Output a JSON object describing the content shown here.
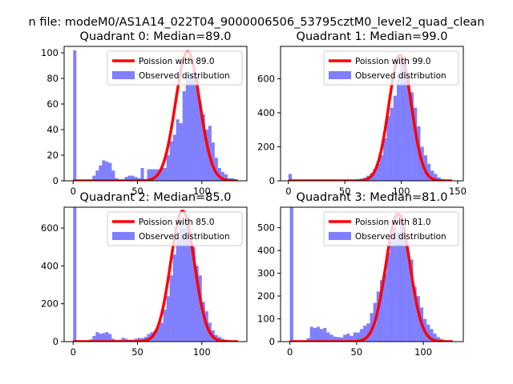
{
  "figure": {
    "suptitle": "n file: modeM0/AS1A14_022T04_9000006506_53795cztM0_level2_quad_clean"
  },
  "colors": {
    "bar": "#0000ff",
    "bar_opacity": 0.5,
    "line": "#ff0000",
    "axis": "#000000",
    "legend_edge": "#cccccc"
  },
  "chart_data": [
    {
      "type": "bar",
      "title": "Quadrant 0: Median=89.0",
      "xlabel": "",
      "ylabel": "",
      "xlim": [
        -7,
        135
      ],
      "ylim": [
        0,
        105
      ],
      "xticks": [
        0,
        50,
        100
      ],
      "yticks": [
        0,
        20,
        40,
        60,
        80,
        100
      ],
      "legend": {
        "placement": "top-right",
        "entries": [
          "Poission with 89.0",
          "Observed distribution"
        ]
      },
      "bin_width": 2.5,
      "bins": [
        [
          0,
          102
        ],
        [
          12.5,
          1
        ],
        [
          15,
          4
        ],
        [
          17.5,
          8
        ],
        [
          20,
          12
        ],
        [
          22.5,
          16
        ],
        [
          25,
          15
        ],
        [
          27.5,
          14
        ],
        [
          30,
          8
        ],
        [
          32.5,
          2
        ],
        [
          35,
          1
        ],
        [
          37.5,
          1
        ],
        [
          40,
          3
        ],
        [
          42.5,
          4
        ],
        [
          45,
          4
        ],
        [
          47.5,
          3
        ],
        [
          50,
          2
        ],
        [
          52.5,
          10
        ],
        [
          55,
          1
        ],
        [
          57.5,
          9
        ],
        [
          60,
          9
        ],
        [
          62.5,
          9
        ],
        [
          65,
          9
        ],
        [
          67.5,
          10
        ],
        [
          70,
          10
        ],
        [
          72.5,
          20
        ],
        [
          75,
          31
        ],
        [
          77.5,
          36
        ],
        [
          80,
          48
        ],
        [
          82.5,
          45
        ],
        [
          85,
          70
        ],
        [
          87.5,
          83
        ],
        [
          90,
          83
        ],
        [
          92.5,
          88
        ],
        [
          95,
          80
        ],
        [
          97.5,
          61
        ],
        [
          100,
          52
        ],
        [
          102.5,
          40
        ],
        [
          105,
          43
        ],
        [
          107.5,
          30
        ],
        [
          110,
          18
        ],
        [
          112.5,
          10
        ],
        [
          115,
          7
        ],
        [
          117.5,
          5
        ],
        [
          120,
          2
        ],
        [
          122.5,
          2
        ],
        [
          125,
          1
        ]
      ],
      "poisson": {
        "mean": 89.0,
        "peak": 101,
        "x_range": [
          0,
          128
        ]
      }
    },
    {
      "type": "bar",
      "title": "Quadrant 1: Median=99.0",
      "xlabel": "",
      "ylabel": "",
      "xlim": [
        -7,
        155
      ],
      "ylim": [
        0,
        790
      ],
      "xticks": [
        0,
        50,
        100,
        150
      ],
      "xtick_labels": [
        "0",
        "50",
        "100",
        "150"
      ],
      "yticks": [
        0,
        200,
        400,
        600
      ],
      "legend": {
        "placement": "top-right",
        "entries": [
          "Poission with 99.0",
          "Observed distribution"
        ]
      },
      "bin_width": 3,
      "bins": [
        [
          0,
          40
        ],
        [
          3,
          5
        ],
        [
          6,
          3
        ],
        [
          45,
          3
        ],
        [
          48,
          3
        ],
        [
          51,
          3
        ],
        [
          54,
          4
        ],
        [
          57,
          5
        ],
        [
          60,
          8
        ],
        [
          63,
          12
        ],
        [
          66,
          18
        ],
        [
          69,
          30
        ],
        [
          72,
          45
        ],
        [
          75,
          70
        ],
        [
          78,
          100
        ],
        [
          81,
          150
        ],
        [
          84,
          250
        ],
        [
          87,
          380
        ],
        [
          90,
          430
        ],
        [
          93,
          500
        ],
        [
          96,
          620
        ],
        [
          99,
          710
        ],
        [
          102,
          690
        ],
        [
          105,
          620
        ],
        [
          108,
          520
        ],
        [
          111,
          430
        ],
        [
          114,
          320
        ],
        [
          117,
          200
        ],
        [
          120,
          150
        ],
        [
          123,
          100
        ],
        [
          126,
          60
        ],
        [
          129,
          40
        ],
        [
          132,
          20
        ],
        [
          135,
          10
        ],
        [
          138,
          5
        ],
        [
          141,
          3
        ],
        [
          144,
          2
        ]
      ],
      "poisson": {
        "mean": 99.0,
        "peak": 740,
        "x_range": [
          0,
          145
        ]
      }
    },
    {
      "type": "bar",
      "title": "Quadrant 2: Median=85.0",
      "xlabel": "",
      "ylabel": "",
      "xlim": [
        -7,
        135
      ],
      "ylim": [
        0,
        710
      ],
      "xticks": [
        0,
        50,
        100
      ],
      "yticks": [
        0,
        200,
        400,
        600
      ],
      "legend": {
        "placement": "top-right",
        "entries": [
          "Poission with 85.0",
          "Observed distribution"
        ]
      },
      "bin_width": 2.5,
      "bins": [
        [
          0,
          710
        ],
        [
          12.5,
          12
        ],
        [
          15,
          30
        ],
        [
          17.5,
          50
        ],
        [
          20,
          42
        ],
        [
          22.5,
          45
        ],
        [
          25,
          50
        ],
        [
          27.5,
          40
        ],
        [
          30,
          15
        ],
        [
          32.5,
          8
        ],
        [
          35,
          10
        ],
        [
          37.5,
          20
        ],
        [
          40,
          15
        ],
        [
          42.5,
          10
        ],
        [
          45,
          10
        ],
        [
          47.5,
          15
        ],
        [
          50,
          20
        ],
        [
          52.5,
          18
        ],
        [
          55,
          25
        ],
        [
          57.5,
          40
        ],
        [
          60,
          50
        ],
        [
          62.5,
          60
        ],
        [
          65,
          80
        ],
        [
          67.5,
          100
        ],
        [
          70,
          170
        ],
        [
          72.5,
          240
        ],
        [
          75,
          350
        ],
        [
          77.5,
          460
        ],
        [
          80,
          550
        ],
        [
          82.5,
          640
        ],
        [
          85,
          600
        ],
        [
          87.5,
          670
        ],
        [
          90,
          580
        ],
        [
          92.5,
          500
        ],
        [
          95,
          400
        ],
        [
          97.5,
          350
        ],
        [
          100,
          210
        ],
        [
          102.5,
          160
        ],
        [
          105,
          100
        ],
        [
          107.5,
          60
        ],
        [
          110,
          35
        ],
        [
          112.5,
          25
        ],
        [
          115,
          15
        ],
        [
          117.5,
          10
        ],
        [
          120,
          5
        ],
        [
          122.5,
          3
        ]
      ],
      "poisson": {
        "mean": 85.0,
        "peak": 690,
        "x_range": [
          0,
          128
        ]
      }
    },
    {
      "type": "bar",
      "title": "Quadrant 3: Median=81.0",
      "xlabel": "",
      "ylabel": "",
      "xlim": [
        -7,
        130
      ],
      "ylim": [
        0,
        590
      ],
      "xticks": [
        0,
        50,
        100
      ],
      "yticks": [
        0,
        100,
        200,
        300,
        400,
        500
      ],
      "legend": {
        "placement": "top-right",
        "entries": [
          "Poission with 81.0",
          "Observed distribution"
        ]
      },
      "bin_width": 2.5,
      "bins": [
        [
          0,
          590
        ],
        [
          12.5,
          15
        ],
        [
          15,
          65
        ],
        [
          17.5,
          60
        ],
        [
          20,
          65
        ],
        [
          22.5,
          55
        ],
        [
          25,
          60
        ],
        [
          27.5,
          40
        ],
        [
          30,
          30
        ],
        [
          32.5,
          22
        ],
        [
          35,
          20
        ],
        [
          37.5,
          18
        ],
        [
          40,
          30
        ],
        [
          42.5,
          35
        ],
        [
          45,
          25
        ],
        [
          47.5,
          40
        ],
        [
          50,
          40
        ],
        [
          52.5,
          55
        ],
        [
          55,
          70
        ],
        [
          57.5,
          80
        ],
        [
          60,
          125
        ],
        [
          62.5,
          170
        ],
        [
          65,
          220
        ],
        [
          67.5,
          270
        ],
        [
          70,
          300
        ],
        [
          72.5,
          390
        ],
        [
          75,
          440
        ],
        [
          77.5,
          505
        ],
        [
          80,
          480
        ],
        [
          82.5,
          560
        ],
        [
          85,
          470
        ],
        [
          87.5,
          390
        ],
        [
          90,
          360
        ],
        [
          92.5,
          240
        ],
        [
          95,
          200
        ],
        [
          97.5,
          150
        ],
        [
          100,
          100
        ],
        [
          102.5,
          75
        ],
        [
          105,
          55
        ],
        [
          107.5,
          35
        ],
        [
          110,
          20
        ],
        [
          112.5,
          12
        ],
        [
          115,
          5
        ],
        [
          117.5,
          3
        ]
      ],
      "poisson": {
        "mean": 81.0,
        "peak": 560,
        "x_range": [
          0,
          122
        ]
      }
    }
  ]
}
